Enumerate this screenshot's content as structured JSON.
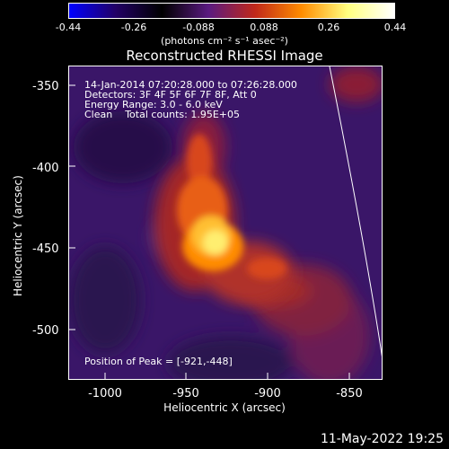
{
  "colorbar": {
    "ticks": [
      "-0.44",
      "-0.26",
      "-0.088",
      "0.088",
      "0.26",
      "0.44"
    ],
    "units": "(photons cm⁻² s⁻¹ asec⁻²)",
    "colors": [
      "#0000ff",
      "#220066",
      "#000000",
      "#5a1a80",
      "#c0281a",
      "#ff8c00",
      "#ffff80",
      "#ffffff"
    ]
  },
  "image": {
    "title": "Reconstructed RHESSI Image",
    "info_lines": [
      "14-Jan-2014 07:20:28.000 to 07:26:28.000",
      "Detectors: 3F 4F 5F 6F 7F 8F, Att 0",
      "Energy Range: 3.0 - 6.0 keV",
      "Clean    Total counts: 1.95E+05"
    ],
    "peak_label": "Position of Peak = [-921,-448]",
    "x_label": "Heliocentric X (arcsec)",
    "y_label": "Heliocentric Y (arcsec)",
    "x_ticks": [
      "-1000",
      "-950",
      "-900",
      "-850"
    ],
    "y_ticks": [
      "-350",
      "-400",
      "-450",
      "-500"
    ]
  },
  "footer": {
    "timestamp": "11-May-2022 19:25"
  }
}
